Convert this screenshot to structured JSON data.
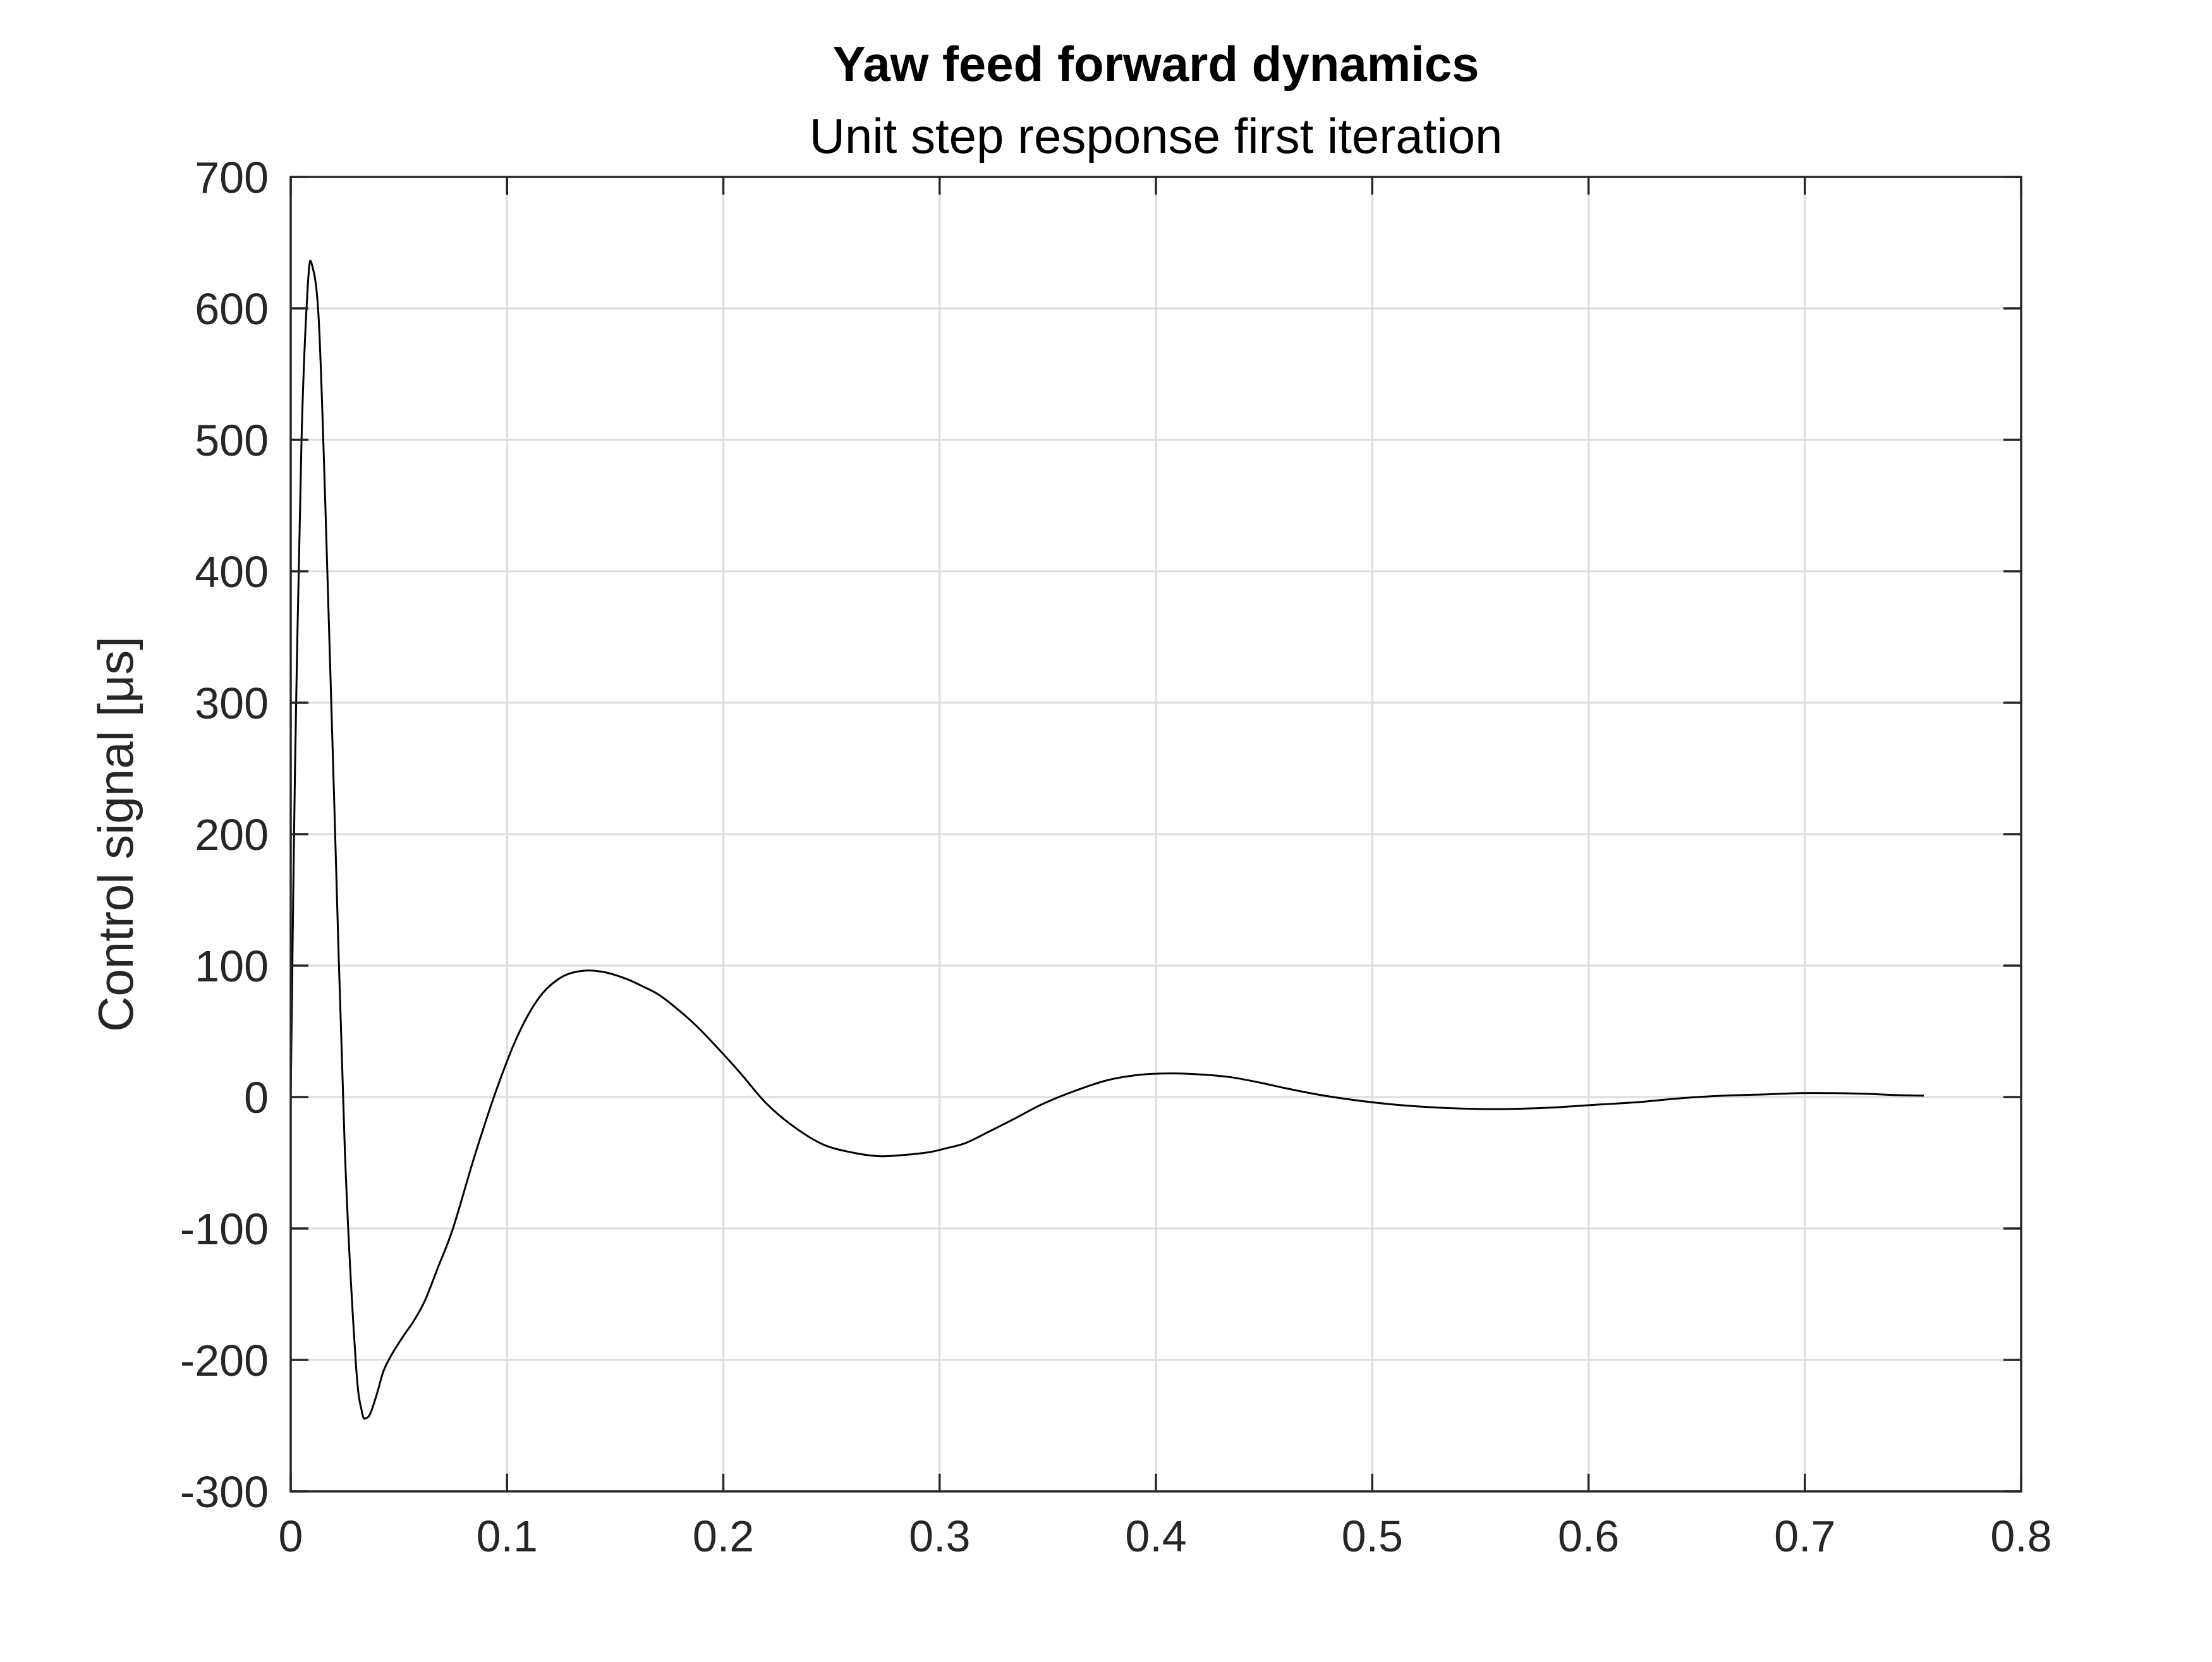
{
  "chart_data": {
    "type": "line",
    "title": "Yaw feed forward dynamics",
    "subtitle": "Unit step response first iteration",
    "xlabel": "",
    "ylabel": "Control signal [μs]",
    "xlim": [
      0,
      0.8
    ],
    "ylim": [
      -300,
      700
    ],
    "xticks": [
      0,
      0.1,
      0.2,
      0.3,
      0.4,
      0.5,
      0.6,
      0.7,
      0.8
    ],
    "xtick_labels": [
      "0",
      "0.1",
      "0.2",
      "0.3",
      "0.4",
      "0.5",
      "0.6",
      "0.7",
      "0.8"
    ],
    "yticks": [
      -300,
      -200,
      -100,
      0,
      100,
      200,
      300,
      400,
      500,
      600,
      700
    ],
    "ytick_labels": [
      "-300",
      "-200",
      "-100",
      "0",
      "100",
      "200",
      "300",
      "400",
      "500",
      "600",
      "700"
    ],
    "grid": true,
    "legend": null,
    "series": [
      {
        "color": "#000000",
        "x": [
          0,
          0.002,
          0.005,
          0.008,
          0.01,
          0.013,
          0.016,
          0.02,
          0.025,
          0.03,
          0.033,
          0.035,
          0.037,
          0.04,
          0.043,
          0.047,
          0.052,
          0.057,
          0.062,
          0.068,
          0.075,
          0.085,
          0.095,
          0.105,
          0.115,
          0.125,
          0.135,
          0.145,
          0.155,
          0.163,
          0.17,
          0.178,
          0.187,
          0.197,
          0.208,
          0.22,
          0.233,
          0.246,
          0.259,
          0.272,
          0.284,
          0.295,
          0.303,
          0.312,
          0.322,
          0.334,
          0.348,
          0.363,
          0.378,
          0.393,
          0.408,
          0.422,
          0.435,
          0.448,
          0.462,
          0.478,
          0.495,
          0.512,
          0.53,
          0.548,
          0.565,
          0.583,
          0.602,
          0.622,
          0.642,
          0.662,
          0.682,
          0.698,
          0.712,
          0.727,
          0.742,
          0.755
        ],
        "y": [
          0,
          250,
          500,
          620,
          632,
          590,
          450,
          230,
          -40,
          -200,
          -240,
          -244,
          -240,
          -225,
          -208,
          -195,
          -182,
          -170,
          -155,
          -130,
          -100,
          -45,
          5,
          47,
          76,
          91,
          96,
          95,
          90,
          84,
          78,
          68,
          55,
          38,
          18,
          -5,
          -23,
          -36,
          -42,
          -45,
          -44,
          -42,
          -39,
          -35,
          -27,
          -17,
          -5,
          5,
          13,
          17,
          18,
          17,
          15,
          11,
          6,
          1,
          -3,
          -6,
          -8,
          -9,
          -9,
          -8,
          -6,
          -4,
          -1,
          1,
          2,
          3,
          3,
          2.5,
          1.5,
          1
        ]
      }
    ]
  }
}
